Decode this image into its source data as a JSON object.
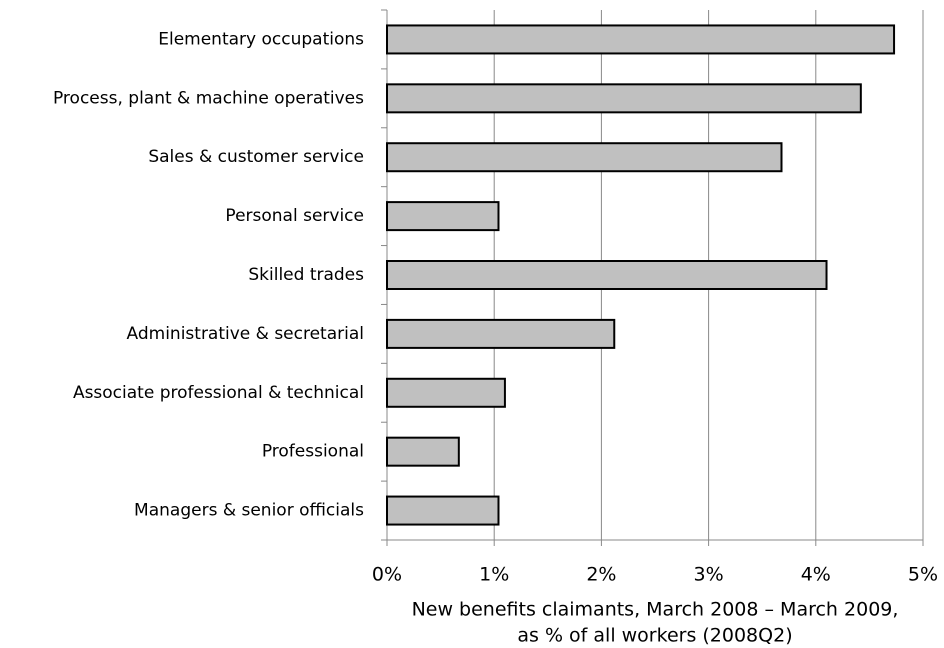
{
  "chart_data": {
    "type": "bar",
    "orientation": "horizontal",
    "categories": [
      "Elementary occupations",
      "Process, plant & machine operatives",
      "Sales & customer service",
      "Personal service",
      "Skilled trades",
      "Administrative & secretarial",
      "Associate professional & technical",
      "Professional",
      "Managers & senior officials"
    ],
    "values": [
      4.73,
      4.42,
      3.68,
      1.04,
      4.1,
      2.12,
      1.1,
      0.67,
      1.04
    ],
    "color": "#c0c0c0",
    "xlim": [
      0,
      5
    ],
    "xticks": [
      {
        "value": 0,
        "label": "0%"
      },
      {
        "value": 1,
        "label": "1%"
      },
      {
        "value": 2,
        "label": "2%"
      },
      {
        "value": 3,
        "label": "3%"
      },
      {
        "value": 4,
        "label": "4%"
      },
      {
        "value": 5,
        "label": "5%"
      }
    ],
    "x_label": [
      "New benefits claimants, March 2008 – March 2009,",
      "as % of all workers (2008Q2)"
    ],
    "grid": true
  }
}
